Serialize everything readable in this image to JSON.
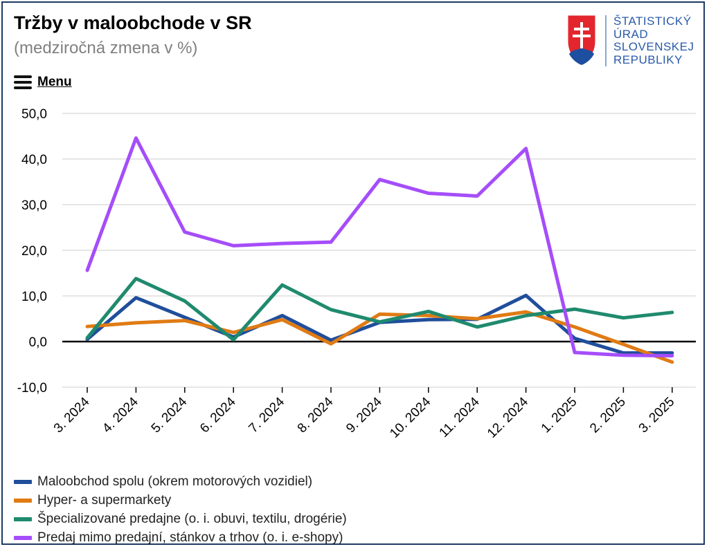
{
  "header": {
    "title": "Tržby v maloobchode v SR",
    "subtitle": "(medziročná zmena v %)",
    "menu_label": "Menu"
  },
  "logo": {
    "lines": [
      "ŠTATISTICKÝ",
      "ÚRAD",
      "SLOVENSKEJ",
      "REPUBLIKY"
    ],
    "color": "#2a5aa8"
  },
  "chart_data": {
    "type": "line",
    "title": "Tržby v maloobchode v SR",
    "subtitle": "(medziročná zmena v %)",
    "categories": [
      "3. 2024",
      "4. 2024",
      "5. 2024",
      "6. 2024",
      "7. 2024",
      "8. 2024",
      "9. 2024",
      "10. 2024",
      "11. 2024",
      "12. 2024",
      "1. 2025",
      "2. 2025",
      "3. 2025"
    ],
    "ylim": [
      -10,
      50
    ],
    "yticks": [
      "-10,0",
      "0,0",
      "10,0",
      "20,0",
      "30,0",
      "40,0",
      "50,0"
    ],
    "ytick_values": [
      -10,
      0,
      10,
      20,
      30,
      40,
      50
    ],
    "grid": true,
    "legend_position": "bottom-left",
    "series": [
      {
        "name": "Maloobchod spolu (okrem motorových vozidiel)",
        "color": "#1f4e9b",
        "values": [
          0.5,
          9.6,
          5.3,
          1.0,
          5.7,
          0.3,
          4.2,
          4.8,
          4.9,
          10.1,
          0.7,
          -2.5,
          -2.5
        ]
      },
      {
        "name": "Hyper- a supermarkety",
        "color": "#e07b14",
        "values": [
          3.3,
          4.1,
          4.6,
          2.0,
          4.8,
          -0.5,
          6.0,
          5.7,
          5.0,
          6.5,
          3.2,
          -0.6,
          -4.5
        ]
      },
      {
        "name": "Špecializované predajne (o. i. obuvi, textilu, drogérie)",
        "color": "#1f8a6e",
        "values": [
          0.8,
          13.8,
          8.9,
          0.4,
          12.4,
          7.0,
          4.3,
          6.6,
          3.2,
          5.7,
          7.1,
          5.2,
          6.4
        ]
      },
      {
        "name": "Predaj mimo predajní, stánkov a trhov (o. i. e-shopy)",
        "color": "#a54dfa",
        "values": [
          15.6,
          44.6,
          24.0,
          21.0,
          21.5,
          21.8,
          35.5,
          32.5,
          31.9,
          42.3,
          -2.4,
          -3.0,
          -3.1
        ]
      }
    ]
  }
}
